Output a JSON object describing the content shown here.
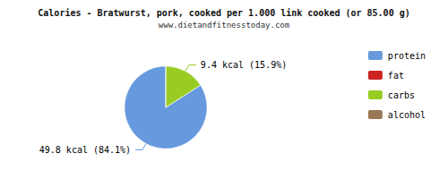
{
  "chart_data": {
    "type": "pie",
    "title": "Calories - Bratwurst, pork, cooked per 1.000 link cooked (or 85.00 g)",
    "subtitle": "www.dietandfitnesstoday.com",
    "categories": [
      "protein",
      "fat",
      "carbs",
      "alcohol"
    ],
    "values": [
      84.1,
      0.001,
      15.9,
      0.001
    ],
    "value_labels": [
      "49.8 kcal (84.1%)",
      null,
      "9.4 kcal (15.9%)",
      null
    ],
    "colors": [
      "#6699dd",
      "#cc2222",
      "#99cc22",
      "#997755"
    ],
    "legend": "upper right"
  }
}
